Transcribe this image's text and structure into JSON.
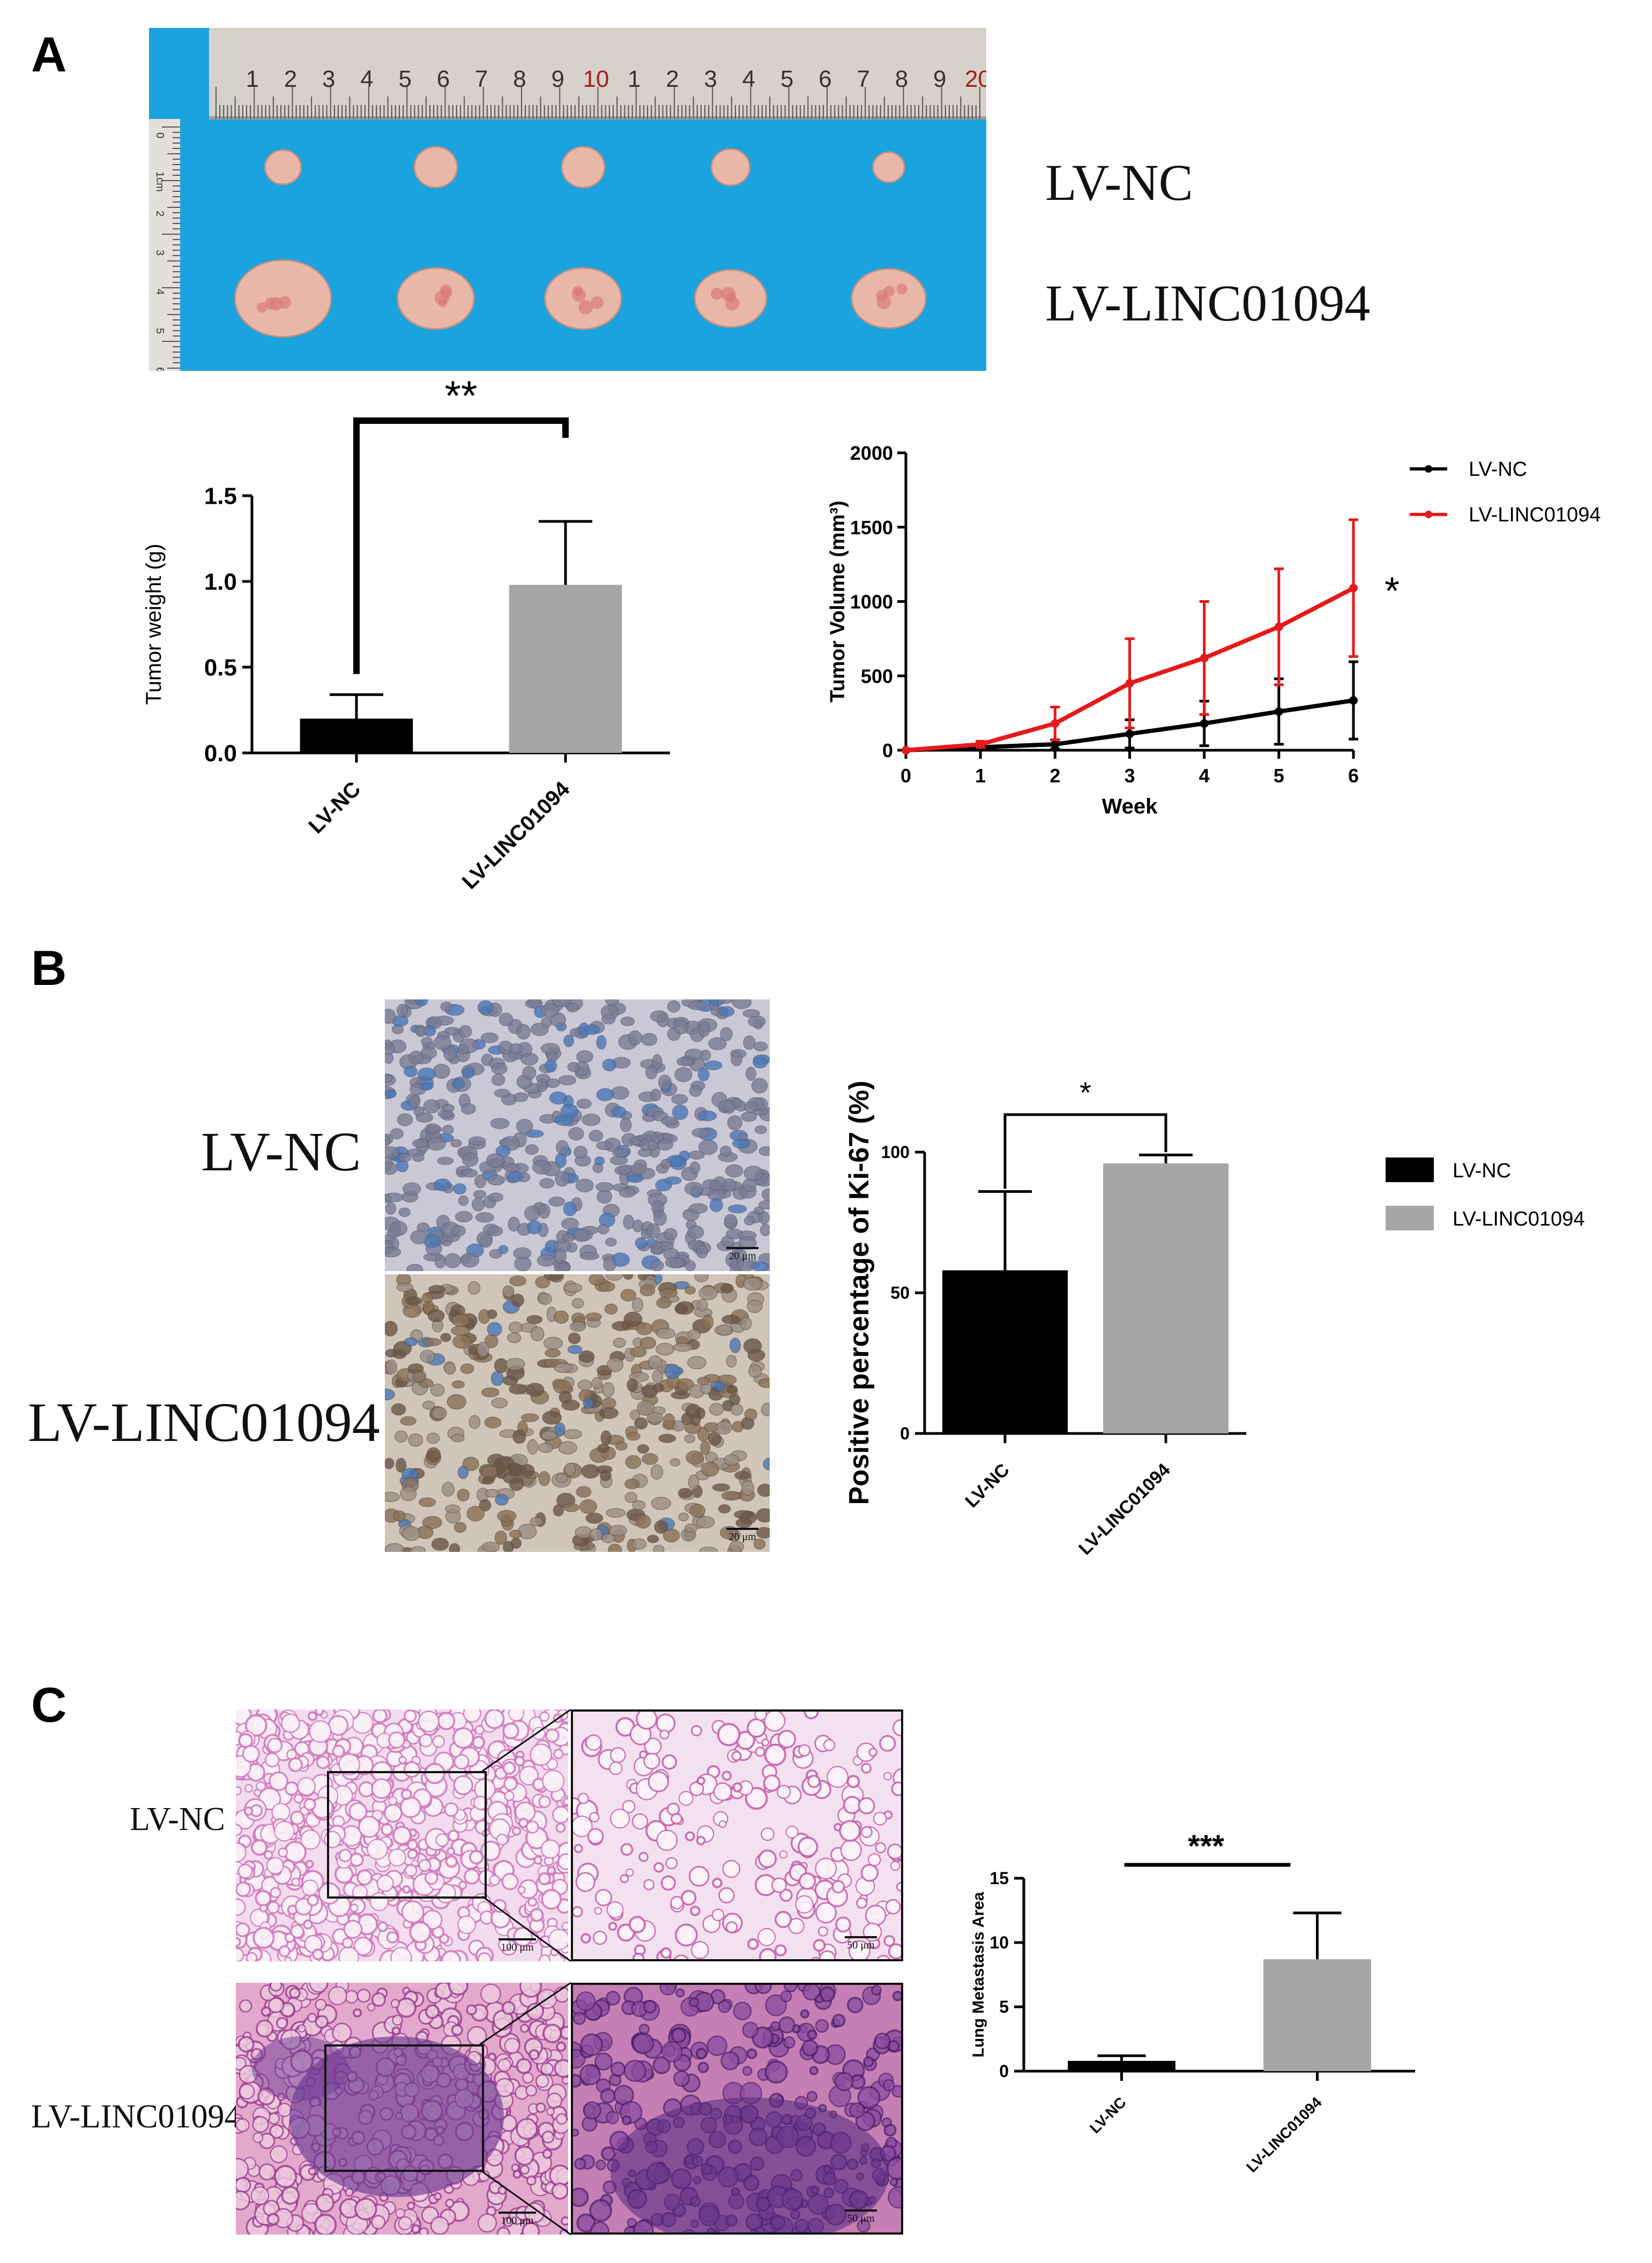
{
  "panels": {
    "a": "A",
    "b": "B",
    "c": "C"
  },
  "panel_a": {
    "groups": [
      "LV-NC",
      "LV-LINC01094"
    ],
    "ruler_top_numbers": [
      "1",
      "2",
      "3",
      "4",
      "5",
      "6",
      "7",
      "8",
      "9",
      "10",
      "1",
      "2",
      "3",
      "4",
      "5",
      "6",
      "7",
      "8",
      "9",
      "20"
    ],
    "ruler_side_numbers": [
      "0",
      "1cm",
      "2",
      "3",
      "4",
      "5",
      "6"
    ],
    "colors": {
      "background": "#1aa3df",
      "ruler": "#d8d4cc",
      "tumor": "#e9b7a8"
    }
  },
  "panel_b": {
    "row_labels": [
      "LV-NC",
      "LV-LINC01094"
    ],
    "scale_bar": "20 μm"
  },
  "panel_c": {
    "row_labels": [
      "LV-NC",
      "LV-LINC01094"
    ],
    "scale_bar_low": "100 μm",
    "scale_bar_high": "50 μm"
  },
  "chart_data": [
    {
      "id": "tumor-weight",
      "type": "bar",
      "categories": [
        "LV-NC",
        "LV-LINC01094"
      ],
      "values": [
        0.2,
        0.98
      ],
      "errors": [
        0.14,
        0.37
      ],
      "colors": [
        "#000000",
        "#a6a6a9"
      ],
      "ylabel": "Tumor weight (g)",
      "ylim": [
        0,
        1.5
      ],
      "yticks": [
        "0.0",
        "0.5",
        "1.0",
        "1.5"
      ],
      "significance": "**"
    },
    {
      "id": "tumor-volume",
      "type": "line",
      "x": [
        0,
        1,
        2,
        3,
        4,
        5,
        6
      ],
      "xticks": [
        "0",
        "1",
        "2",
        "3",
        "4",
        "5",
        "6"
      ],
      "xlabel": "Week",
      "ylabel": "Tumor Volume (mm³)",
      "ylim": [
        0,
        2000
      ],
      "yticks": [
        "0",
        "500",
        "1000",
        "1500",
        "2000"
      ],
      "series": [
        {
          "name": "LV-NC",
          "color": "#000000",
          "values": [
            0,
            20,
            40,
            110,
            180,
            260,
            335
          ],
          "errors": [
            0,
            15,
            30,
            95,
            150,
            220,
            260
          ]
        },
        {
          "name": "LV-LINC01094",
          "color": "#e41a1c",
          "values": [
            0,
            40,
            180,
            450,
            620,
            830,
            1090
          ],
          "errors": [
            0,
            20,
            110,
            300,
            380,
            390,
            460
          ]
        }
      ],
      "legend": "top-right",
      "significance": "*"
    },
    {
      "id": "ki67",
      "type": "bar",
      "categories": [
        "LV-NC",
        "LV-LINC01094"
      ],
      "values": [
        58,
        96
      ],
      "errors": [
        28,
        3
      ],
      "colors": [
        "#000000",
        "#a6a6a9"
      ],
      "ylabel": "Positive percentage of Ki-67 (%)",
      "ylim": [
        0,
        100
      ],
      "yticks": [
        "0",
        "50",
        "100"
      ],
      "legend": "right",
      "significance": "*"
    },
    {
      "id": "lung-metastasis",
      "type": "bar",
      "categories": [
        "LV-NC",
        "LV-LINC01094"
      ],
      "values": [
        0.8,
        8.7
      ],
      "errors": [
        0.4,
        3.6
      ],
      "colors": [
        "#000000",
        "#a6a6a9"
      ],
      "ylabel": "Lung Metastasis Area",
      "ylim": [
        0,
        15
      ],
      "yticks": [
        "0",
        "5",
        "10",
        "15"
      ],
      "significance": "***"
    }
  ]
}
